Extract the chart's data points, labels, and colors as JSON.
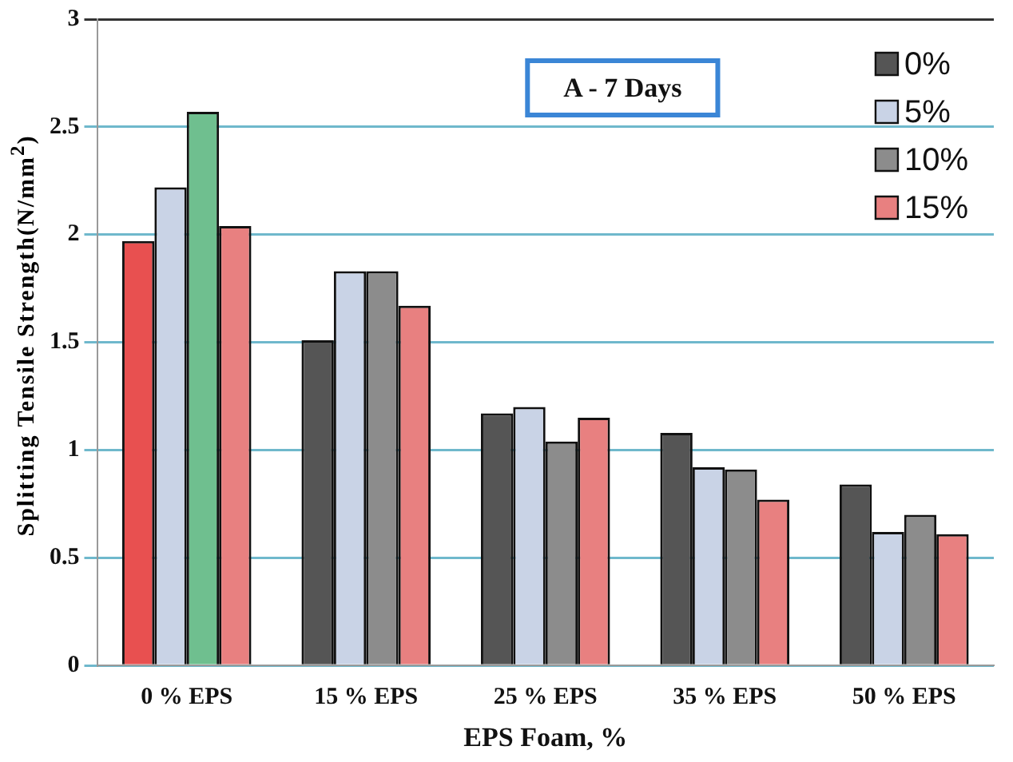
{
  "chart_data": {
    "type": "bar",
    "xlabel": "EPS Foam, %",
    "ylabel": "Splitting Tensile Strength(N/mm$^{2}$)",
    "annotations": [
      "A - 7 Days"
    ],
    "categories": [
      "0 % EPS",
      "15 % EPS",
      "25 % EPS",
      "35 % EPS",
      "50 % EPS"
    ],
    "series": [
      {
        "name": "0%",
        "color": "#555555",
        "colors": [
          "#e85050",
          "#555555",
          "#555555",
          "#555555",
          "#555555"
        ],
        "values": [
          1.97,
          1.51,
          1.17,
          1.08,
          0.84
        ]
      },
      {
        "name": "5%",
        "color": "#c9d3e6",
        "values": [
          2.22,
          1.83,
          1.2,
          0.92,
          0.62
        ]
      },
      {
        "name": "10%",
        "color": "#8c8c8c",
        "colors": [
          "#6fbf8f",
          "#8c8c8c",
          "#8c8c8c",
          "#8c8c8c",
          "#8c8c8c"
        ],
        "values": [
          2.57,
          1.83,
          1.04,
          0.91,
          0.7
        ]
      },
      {
        "name": "15%",
        "color": "#e88080",
        "values": [
          2.04,
          1.67,
          1.15,
          0.77,
          0.61
        ]
      }
    ],
    "ylim": [
      0,
      3
    ],
    "yticks": [
      0,
      0.5,
      1,
      1.5,
      2,
      2.5,
      3
    ],
    "grid": "y",
    "legend": "top right"
  }
}
